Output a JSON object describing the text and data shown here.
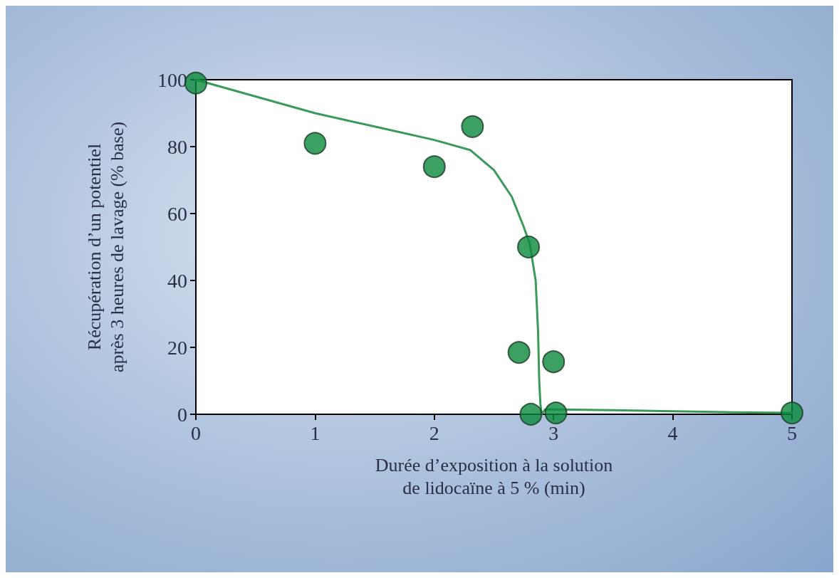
{
  "chart_data": {
    "type": "scatter",
    "xlabel": "Durée d’exposition à la solution\nde lidocaïne à 5 % (min)",
    "ylabel": "Récupération d’un potentiel\naprès 3 heures de lavage (% base)",
    "xlim": [
      0,
      5
    ],
    "xticks": [
      0,
      1,
      2,
      3,
      4,
      5
    ],
    "ylim": [
      0,
      100
    ],
    "yticks": [
      0,
      20,
      40,
      60,
      80,
      100
    ],
    "grid": false,
    "marker": "circle",
    "series": [
      {
        "type": "line",
        "color": "#3a9a5a",
        "marker": "none",
        "x": [
          0,
          0.5,
          1,
          1.5,
          2,
          2.3,
          2.5,
          2.65,
          2.75,
          2.8,
          2.85,
          2.87,
          2.88,
          2.89,
          2.9,
          2.93,
          3.5,
          4,
          4.5,
          5
        ],
        "values": [
          100,
          95,
          90,
          86,
          82,
          79,
          73,
          65,
          56,
          51,
          40,
          25,
          10,
          3,
          0,
          1.5,
          1.2,
          0.9,
          0.6,
          0.4
        ]
      },
      {
        "color": "#0a8a3c",
        "x": [
          0,
          1,
          2,
          2.32,
          2.79,
          2.71,
          3.0,
          2.81,
          3.02,
          5
        ],
        "values": [
          99,
          81,
          74,
          86,
          50,
          18.5,
          15.7,
          0,
          0.4,
          0.4
        ]
      }
    ]
  }
}
